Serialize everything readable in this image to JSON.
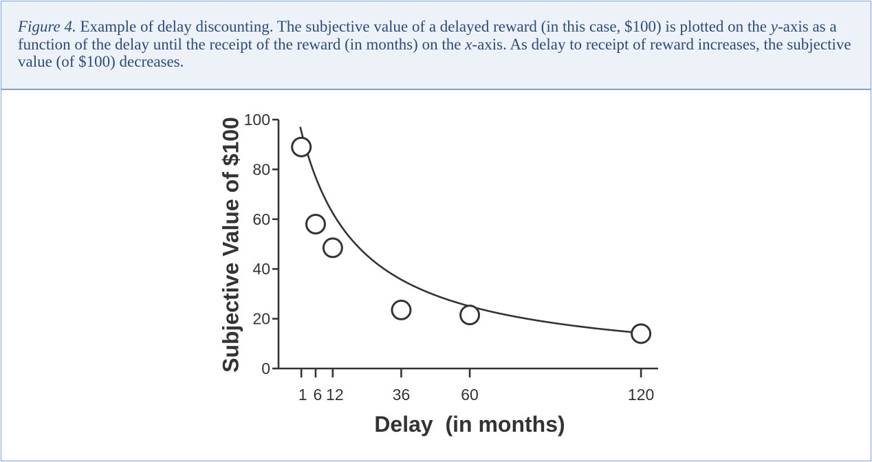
{
  "caption": {
    "label": "Figure 4.",
    "parts": [
      {
        "text": " Example of delay discounting. The subjective value of a delayed reward (in this case, $100) is plotted on the ",
        "italic": false
      },
      {
        "text": "y",
        "italic": true
      },
      {
        "text": "-axis as a function of the delay until the receipt of the reward (in months) on the ",
        "italic": false
      },
      {
        "text": "x",
        "italic": true
      },
      {
        "text": "-axis. As delay to receipt of reward increases, the subjective value (of $100) decreases.",
        "italic": false
      }
    ]
  },
  "colors": {
    "caption_text": "#2d4a7c",
    "caption_bg": "#edf2f9",
    "border": "#7fa0c8",
    "ink": "#333333"
  },
  "chart_data": {
    "type": "scatter",
    "title": "",
    "xlabel": "Delay  (in months)",
    "ylabel": "Subjective Value of $100",
    "xlim": [
      -7,
      126
    ],
    "ylim": [
      0,
      100
    ],
    "x_ticks": [
      1,
      6,
      12,
      36,
      60,
      120
    ],
    "y_ticks": [
      0,
      20,
      40,
      60,
      80,
      100
    ],
    "grid": false,
    "legend": "none",
    "points": [
      {
        "x": 1,
        "y": 89
      },
      {
        "x": 6,
        "y": 58
      },
      {
        "x": 12,
        "y": 48.5
      },
      {
        "x": 36,
        "y": 23.5
      },
      {
        "x": 60,
        "y": 21.5
      },
      {
        "x": 120,
        "y": 14
      }
    ],
    "fit_curve": {
      "type": "hyperbolic",
      "formula": "V = A / (1 + kD)",
      "A": 100,
      "k": 0.05
    }
  }
}
